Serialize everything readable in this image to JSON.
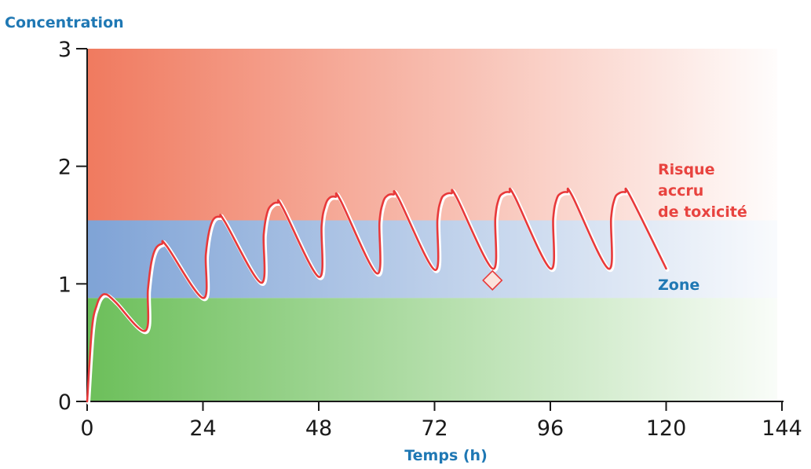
{
  "chart_data": {
    "type": "line",
    "ylabel": "Concentration",
    "xlabel": "Temps (h)",
    "xlim": [
      0,
      144
    ],
    "ylim": [
      0,
      3
    ],
    "x_ticks": [
      0,
      24,
      48,
      72,
      96,
      120,
      144
    ],
    "y_ticks": [
      0,
      1,
      2,
      3
    ],
    "x_tick_labels": [
      "0",
      "24",
      "48",
      "72",
      "96",
      "120",
      "144"
    ],
    "y_tick_labels": [
      "0",
      "1",
      "2",
      "3"
    ],
    "grid": false,
    "zones": [
      {
        "label": "",
        "y_from": 0,
        "y_to": 0.88,
        "color": "#6cbf5a"
      },
      {
        "label": "Zone",
        "y_from": 0.88,
        "y_to": 1.54,
        "color": "#7fa3d6"
      },
      {
        "label_lines": [
          "Risque",
          "accru",
          "de toxicité"
        ],
        "y_from": 1.54,
        "y_to": 3,
        "color": "#f07a5f"
      }
    ],
    "series": [
      {
        "color": "#e8393a",
        "dosing_interval": 12,
        "x": [
          0,
          1,
          2,
          3,
          4,
          5,
          6,
          12,
          12.6,
          13.3,
          14.2,
          15.5,
          16.5,
          24,
          24.6,
          25.3,
          26.2,
          27.5,
          28.5,
          36,
          36.6,
          37.3,
          38.2,
          39.5,
          40.5,
          48,
          48.6,
          49.3,
          50.2,
          51.5,
          52.5,
          60,
          60.6,
          61.3,
          62.2,
          63.5,
          64.5,
          72,
          72.6,
          73.3,
          74.2,
          75.5,
          76.5,
          84,
          84.6,
          85.3,
          86.2,
          87.5,
          88.5,
          96,
          96.6,
          97.3,
          98.2,
          99.5,
          100.5,
          108,
          108.6,
          109.3,
          110.2,
          111.5,
          112.5,
          120
        ],
        "y": [
          0,
          0.62,
          0.82,
          0.9,
          0.91,
          0.88,
          0.84,
          0.6,
          0.95,
          1.18,
          1.3,
          1.34,
          1.32,
          0.88,
          1.25,
          1.45,
          1.55,
          1.57,
          1.53,
          1.01,
          1.42,
          1.6,
          1.67,
          1.69,
          1.65,
          1.06,
          1.5,
          1.66,
          1.73,
          1.74,
          1.71,
          1.09,
          1.53,
          1.69,
          1.75,
          1.76,
          1.73,
          1.12,
          1.55,
          1.71,
          1.76,
          1.77,
          1.74,
          1.13,
          1.56,
          1.72,
          1.77,
          1.78,
          1.75,
          1.13,
          1.56,
          1.72,
          1.77,
          1.78,
          1.75,
          1.13,
          1.56,
          1.72,
          1.77,
          1.78,
          1.75,
          1.13
        ]
      }
    ],
    "annotations": [
      {
        "shape": "diamond",
        "x": 84,
        "y": 1.03,
        "color": "#e8393a"
      }
    ]
  }
}
